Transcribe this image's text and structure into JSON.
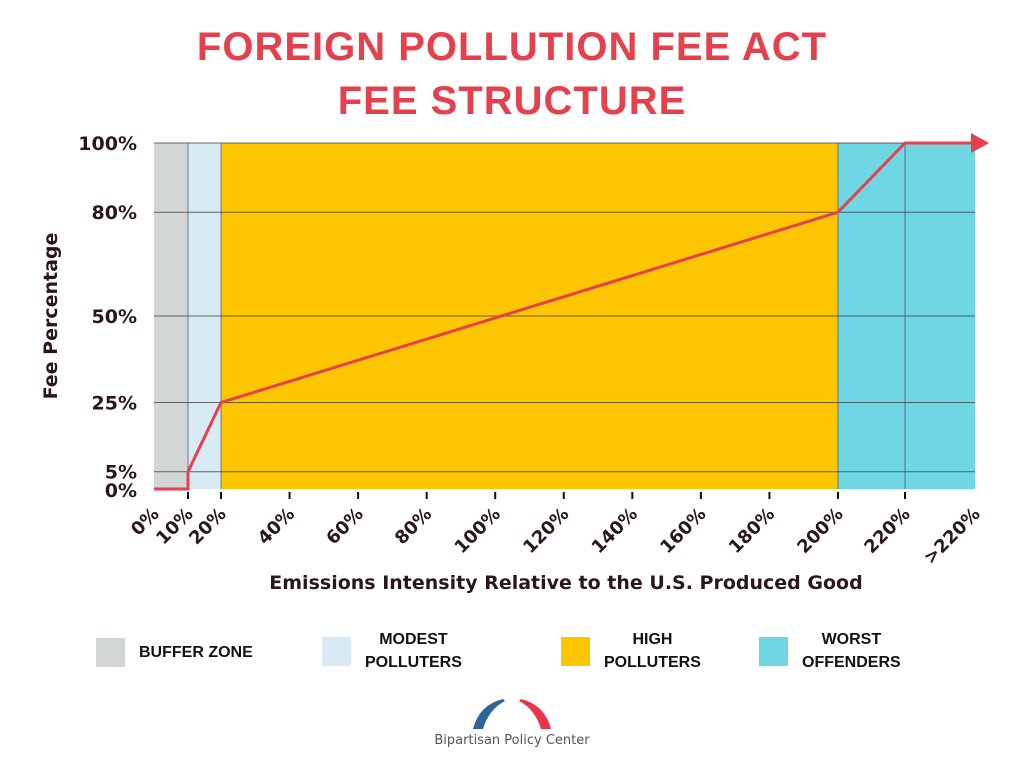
{
  "title_line1": "FOREIGN POLLUTION FEE ACT",
  "title_line2": "FEE STRUCTURE",
  "colors": {
    "title": "#e5404b",
    "line": "#e5404b",
    "buffer_zone": "#d3d6d6",
    "modest_polluters": "#d8ebf4",
    "high_polluters": "#fec600",
    "worst_offenders": "#6fd7e4",
    "text": "#2b1620"
  },
  "chart_data": {
    "type": "line",
    "title": "FOREIGN POLLUTION FEE ACT FEE STRUCTURE",
    "xlabel": "Emissions Intensity Relative to the U.S. Produced Good",
    "ylabel": "Fee Percentage",
    "x_ticks": [
      {
        "value": 0,
        "label": "0%"
      },
      {
        "value": 10,
        "label": "10%"
      },
      {
        "value": 20,
        "label": "20%"
      },
      {
        "value": 40,
        "label": "40%"
      },
      {
        "value": 60,
        "label": "60%"
      },
      {
        "value": 80,
        "label": "80%"
      },
      {
        "value": 100,
        "label": "100%"
      },
      {
        "value": 120,
        "label": "120%"
      },
      {
        "value": 140,
        "label": "140%"
      },
      {
        "value": 160,
        "label": "160%"
      },
      {
        "value": 180,
        "label": "180%"
      },
      {
        "value": 200,
        "label": "200%"
      },
      {
        "value": 220,
        "label": "220%"
      },
      {
        "value": 240,
        "label": ">220%"
      }
    ],
    "y_ticks": [
      {
        "value": 0,
        "label": "0%"
      },
      {
        "value": 5,
        "label": "5%"
      },
      {
        "value": 25,
        "label": "25%"
      },
      {
        "value": 50,
        "label": "50%"
      },
      {
        "value": 80,
        "label": "80%"
      },
      {
        "value": 100,
        "label": "100%"
      }
    ],
    "xlim": [
      0,
      240
    ],
    "ylim": [
      0,
      100
    ],
    "grid": true,
    "series": [
      {
        "name": "Fee Percentage",
        "points": [
          {
            "x": 0,
            "y": 0
          },
          {
            "x": 10,
            "y": 0
          },
          {
            "x": 10,
            "y": 5
          },
          {
            "x": 20,
            "y": 25
          },
          {
            "x": 200,
            "y": 80
          },
          {
            "x": 220,
            "y": 100
          },
          {
            "x": 240,
            "y": 100
          }
        ],
        "arrow_end": true
      }
    ],
    "zones": [
      {
        "name": "BUFFER ZONE",
        "from": 0,
        "to": 10,
        "color_key": "buffer_zone"
      },
      {
        "name": "MODEST POLLUTERS",
        "from": 10,
        "to": 20,
        "color_key": "modest_polluters"
      },
      {
        "name": "HIGH POLLUTERS",
        "from": 20,
        "to": 200,
        "color_key": "high_polluters"
      },
      {
        "name": "WORST OFFENDERS",
        "from": 200,
        "to": 240,
        "color_key": "worst_offenders"
      }
    ],
    "legend_position": "bottom"
  },
  "legend": [
    {
      "line1": "BUFFER ZONE",
      "line2": "",
      "color": "#d3d6d6"
    },
    {
      "line1": "MODEST",
      "line2": "POLLUTERS",
      "color": "#d8ebf4"
    },
    {
      "line1": "HIGH",
      "line2": "POLLUTERS",
      "color": "#fec600"
    },
    {
      "line1": "WORST",
      "line2": "OFFENDERS",
      "color": "#6fd7e4"
    }
  ],
  "footer": {
    "logo_icon": "bridge-arch-icon",
    "organization": "Bipartisan Policy Center"
  }
}
